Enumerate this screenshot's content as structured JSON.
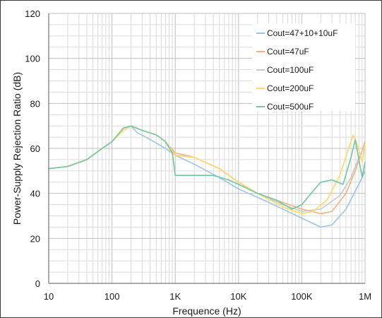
{
  "chart_data": {
    "type": "line",
    "xlabel": "Frequence (Hz)",
    "ylabel": "Power-Supply Rejection Ratio (dB)",
    "x_scale": "log",
    "xlim": [
      10,
      1000000
    ],
    "ylim": [
      0,
      120
    ],
    "x_ticks": [
      {
        "value": 10,
        "label": "10"
      },
      {
        "value": 100,
        "label": "100"
      },
      {
        "value": 1000,
        "label": "1K"
      },
      {
        "value": 10000,
        "label": "10K"
      },
      {
        "value": 100000,
        "label": "100K"
      },
      {
        "value": 1000000,
        "label": "1M"
      }
    ],
    "y_ticks": [
      0,
      20,
      40,
      60,
      80,
      100,
      120
    ],
    "grid": true,
    "legend_position": "top-right",
    "series": [
      {
        "name": "Cout=47+10+10uF",
        "color": "#9dc3e6",
        "points": [
          [
            10,
            51
          ],
          [
            20,
            52
          ],
          [
            40,
            55
          ],
          [
            70,
            60
          ],
          [
            100,
            63
          ],
          [
            150,
            68
          ],
          [
            200,
            70
          ],
          [
            250,
            67
          ],
          [
            400,
            64
          ],
          [
            700,
            60
          ],
          [
            1000,
            57
          ],
          [
            2000,
            53
          ],
          [
            5000,
            47
          ],
          [
            10000,
            42
          ],
          [
            30000,
            36
          ],
          [
            100000,
            29
          ],
          [
            200000,
            25
          ],
          [
            300000,
            26
          ],
          [
            500000,
            33
          ],
          [
            700000,
            41
          ],
          [
            900000,
            47
          ],
          [
            1000000,
            50
          ]
        ]
      },
      {
        "name": "Cout=47uF",
        "color": "#f4b183",
        "points": [
          [
            10,
            51
          ],
          [
            20,
            52
          ],
          [
            40,
            55
          ],
          [
            70,
            60
          ],
          [
            100,
            63
          ],
          [
            150,
            68
          ],
          [
            200,
            70
          ],
          [
            300,
            68
          ],
          [
            500,
            66
          ],
          [
            700,
            63
          ],
          [
            1000,
            58
          ],
          [
            2000,
            56
          ],
          [
            5000,
            51
          ],
          [
            10000,
            45
          ],
          [
            20000,
            40
          ],
          [
            50000,
            36
          ],
          [
            100000,
            33
          ],
          [
            200000,
            31
          ],
          [
            300000,
            32
          ],
          [
            500000,
            40
          ],
          [
            700000,
            50
          ],
          [
            850000,
            57
          ],
          [
            1000000,
            63
          ]
        ]
      },
      {
        "name": "Cout=100uF",
        "color": "#c9c9c9",
        "points": [
          [
            10,
            51
          ],
          [
            20,
            52
          ],
          [
            40,
            55
          ],
          [
            70,
            60
          ],
          [
            100,
            63
          ],
          [
            150,
            68
          ],
          [
            200,
            70
          ],
          [
            300,
            68
          ],
          [
            500,
            66
          ],
          [
            700,
            63
          ],
          [
            1000,
            57
          ],
          [
            2000,
            56
          ],
          [
            5000,
            51
          ],
          [
            10000,
            45
          ],
          [
            20000,
            40
          ],
          [
            50000,
            35
          ],
          [
            80000,
            33
          ],
          [
            100000,
            32
          ],
          [
            200000,
            33
          ],
          [
            400000,
            39
          ],
          [
            600000,
            47
          ],
          [
            800000,
            56
          ],
          [
            1000000,
            61
          ]
        ]
      },
      {
        "name": "Cout=200uF",
        "color": "#ffd966",
        "points": [
          [
            10,
            51
          ],
          [
            20,
            52
          ],
          [
            40,
            55
          ],
          [
            70,
            60
          ],
          [
            100,
            63
          ],
          [
            150,
            68
          ],
          [
            200,
            70
          ],
          [
            300,
            68
          ],
          [
            500,
            66
          ],
          [
            700,
            63
          ],
          [
            1000,
            57
          ],
          [
            2000,
            56
          ],
          [
            5000,
            51
          ],
          [
            10000,
            45
          ],
          [
            20000,
            40
          ],
          [
            50000,
            34
          ],
          [
            100000,
            31
          ],
          [
            150000,
            32
          ],
          [
            250000,
            37
          ],
          [
            400000,
            48
          ],
          [
            550000,
            60
          ],
          [
            650000,
            66
          ],
          [
            750000,
            62
          ],
          [
            900000,
            54
          ],
          [
            1000000,
            62
          ]
        ]
      },
      {
        "name": "Cout=500uF",
        "color": "#70c7a0",
        "points": [
          [
            10,
            51
          ],
          [
            20,
            52
          ],
          [
            40,
            55
          ],
          [
            70,
            60
          ],
          [
            100,
            63
          ],
          [
            150,
            69
          ],
          [
            200,
            70
          ],
          [
            300,
            68
          ],
          [
            500,
            66
          ],
          [
            700,
            63
          ],
          [
            900,
            58
          ],
          [
            1000,
            48
          ],
          [
            2000,
            48
          ],
          [
            4000,
            48
          ],
          [
            7000,
            46
          ],
          [
            10000,
            44
          ],
          [
            20000,
            40
          ],
          [
            40000,
            37
          ],
          [
            70000,
            33
          ],
          [
            100000,
            35
          ],
          [
            150000,
            41
          ],
          [
            200000,
            45
          ],
          [
            300000,
            46
          ],
          [
            450000,
            44
          ],
          [
            600000,
            56
          ],
          [
            700000,
            64
          ],
          [
            800000,
            55
          ],
          [
            900000,
            47
          ],
          [
            1000000,
            54
          ]
        ]
      }
    ]
  }
}
